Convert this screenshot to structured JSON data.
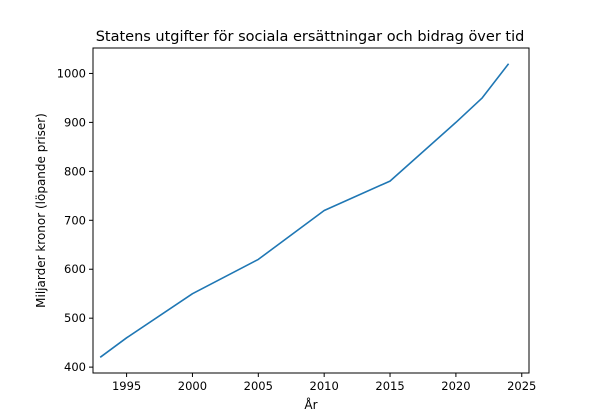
{
  "chart_data": {
    "type": "line",
    "title": "Statens utgifter för sociala ersättningar och bidrag över tid",
    "xlabel": "År",
    "ylabel": "Miljarder kronor (löpande priser)",
    "xlim": [
      1992.45,
      2025.55
    ],
    "ylim": [
      388,
      1052
    ],
    "xticks": [
      1995,
      2000,
      2005,
      2010,
      2015,
      2020,
      2025
    ],
    "yticks": [
      400,
      500,
      600,
      700,
      800,
      900,
      1000
    ],
    "grid": false,
    "series": [
      {
        "color": "#1f77b4",
        "x": [
          1993,
          1995,
          2000,
          2005,
          2010,
          2015,
          2020,
          2022,
          2024
        ],
        "y": [
          420,
          460,
          550,
          620,
          720,
          780,
          900,
          950,
          1020
        ]
      }
    ]
  }
}
